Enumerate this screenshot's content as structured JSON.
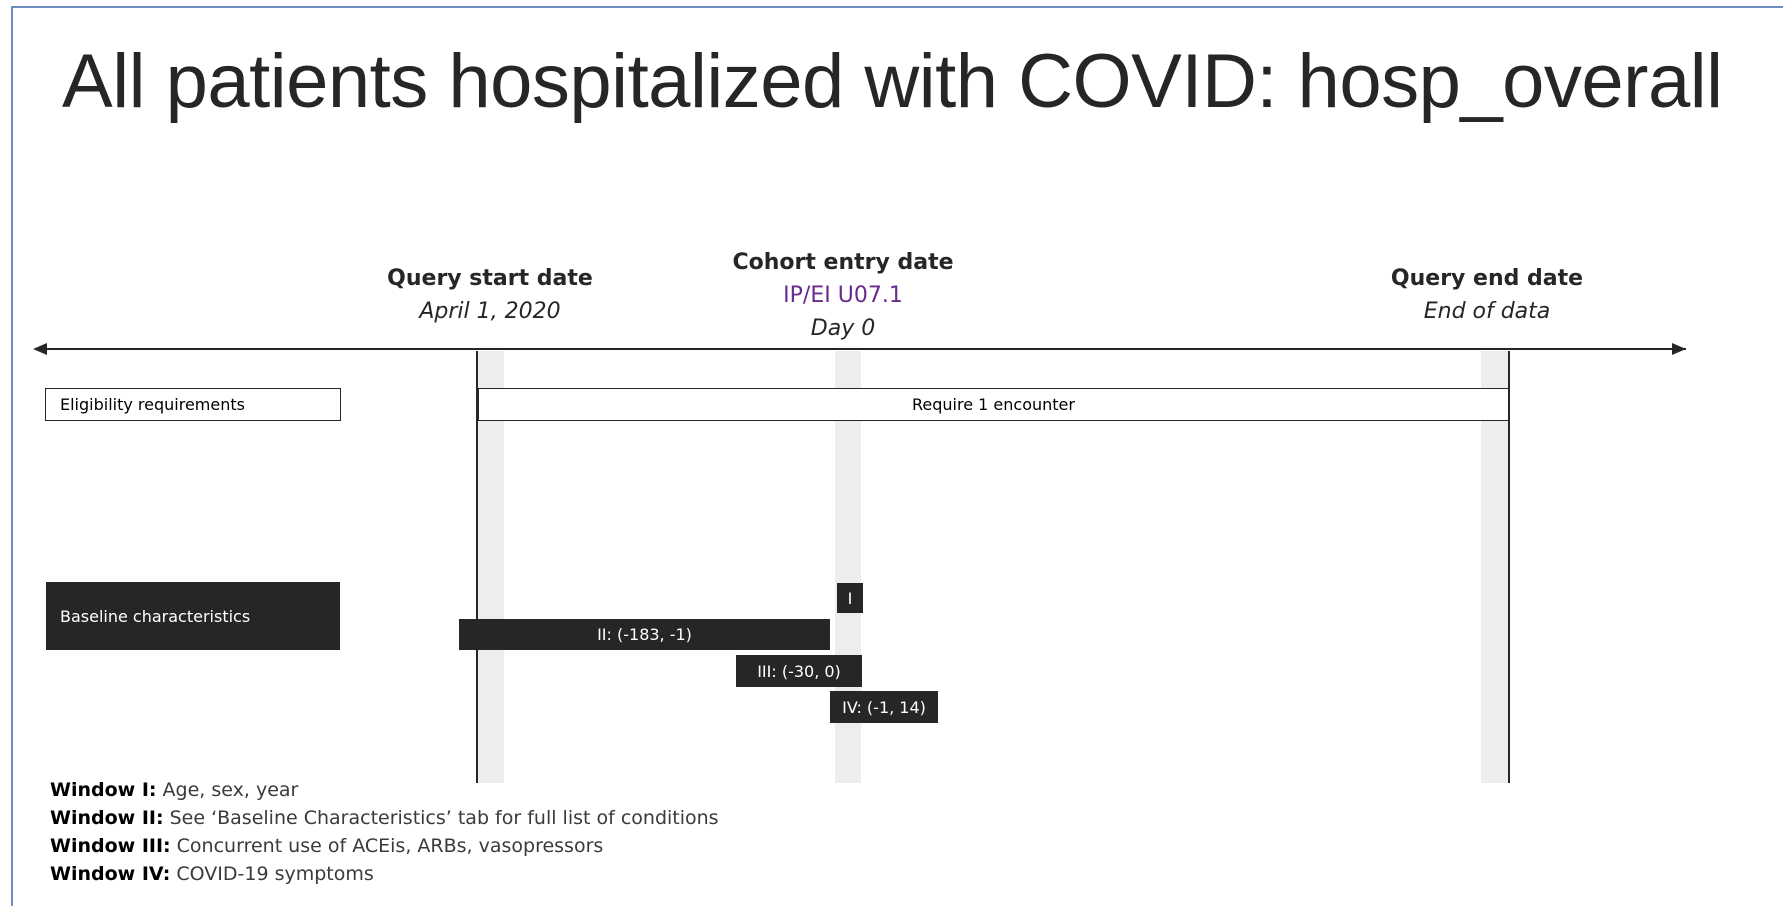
{
  "title": "All patients hospitalized with COVID: hosp_overall",
  "dates": {
    "query_start": {
      "label": "Query start date",
      "sub": "April 1, 2020"
    },
    "cohort_entry": {
      "label": "Cohort entry date",
      "code": "IP/EI U07.1",
      "sub": "Day 0"
    },
    "query_end": {
      "label": "Query end date",
      "sub": "End of data"
    }
  },
  "rows": {
    "eligibility": {
      "label": "Eligibility requirements",
      "bar": "Require 1 encounter"
    },
    "baseline": {
      "label": "Baseline characteristics"
    }
  },
  "windows": {
    "w1": "I",
    "w2": "II: (-183, -1)",
    "w3": "III: (-30, 0)",
    "w4": "IV: (-1, 14)"
  },
  "notes": [
    {
      "key": "Window I:",
      "text": " Age, sex, year"
    },
    {
      "key": "Window II:",
      "text": " See ‘Baseline Characteristics’ tab for full list of conditions"
    },
    {
      "key": "Window III:",
      "text": " Concurrent use of ACEis, ARBs, vasopressors"
    },
    {
      "key": "Window IV:",
      "text": " COVID-19 symptoms"
    }
  ],
  "colors": {
    "dark_fill": "#262626",
    "code_text": "#6a2a8e",
    "shade": "#ededed",
    "frame": "#6d8fbf"
  }
}
